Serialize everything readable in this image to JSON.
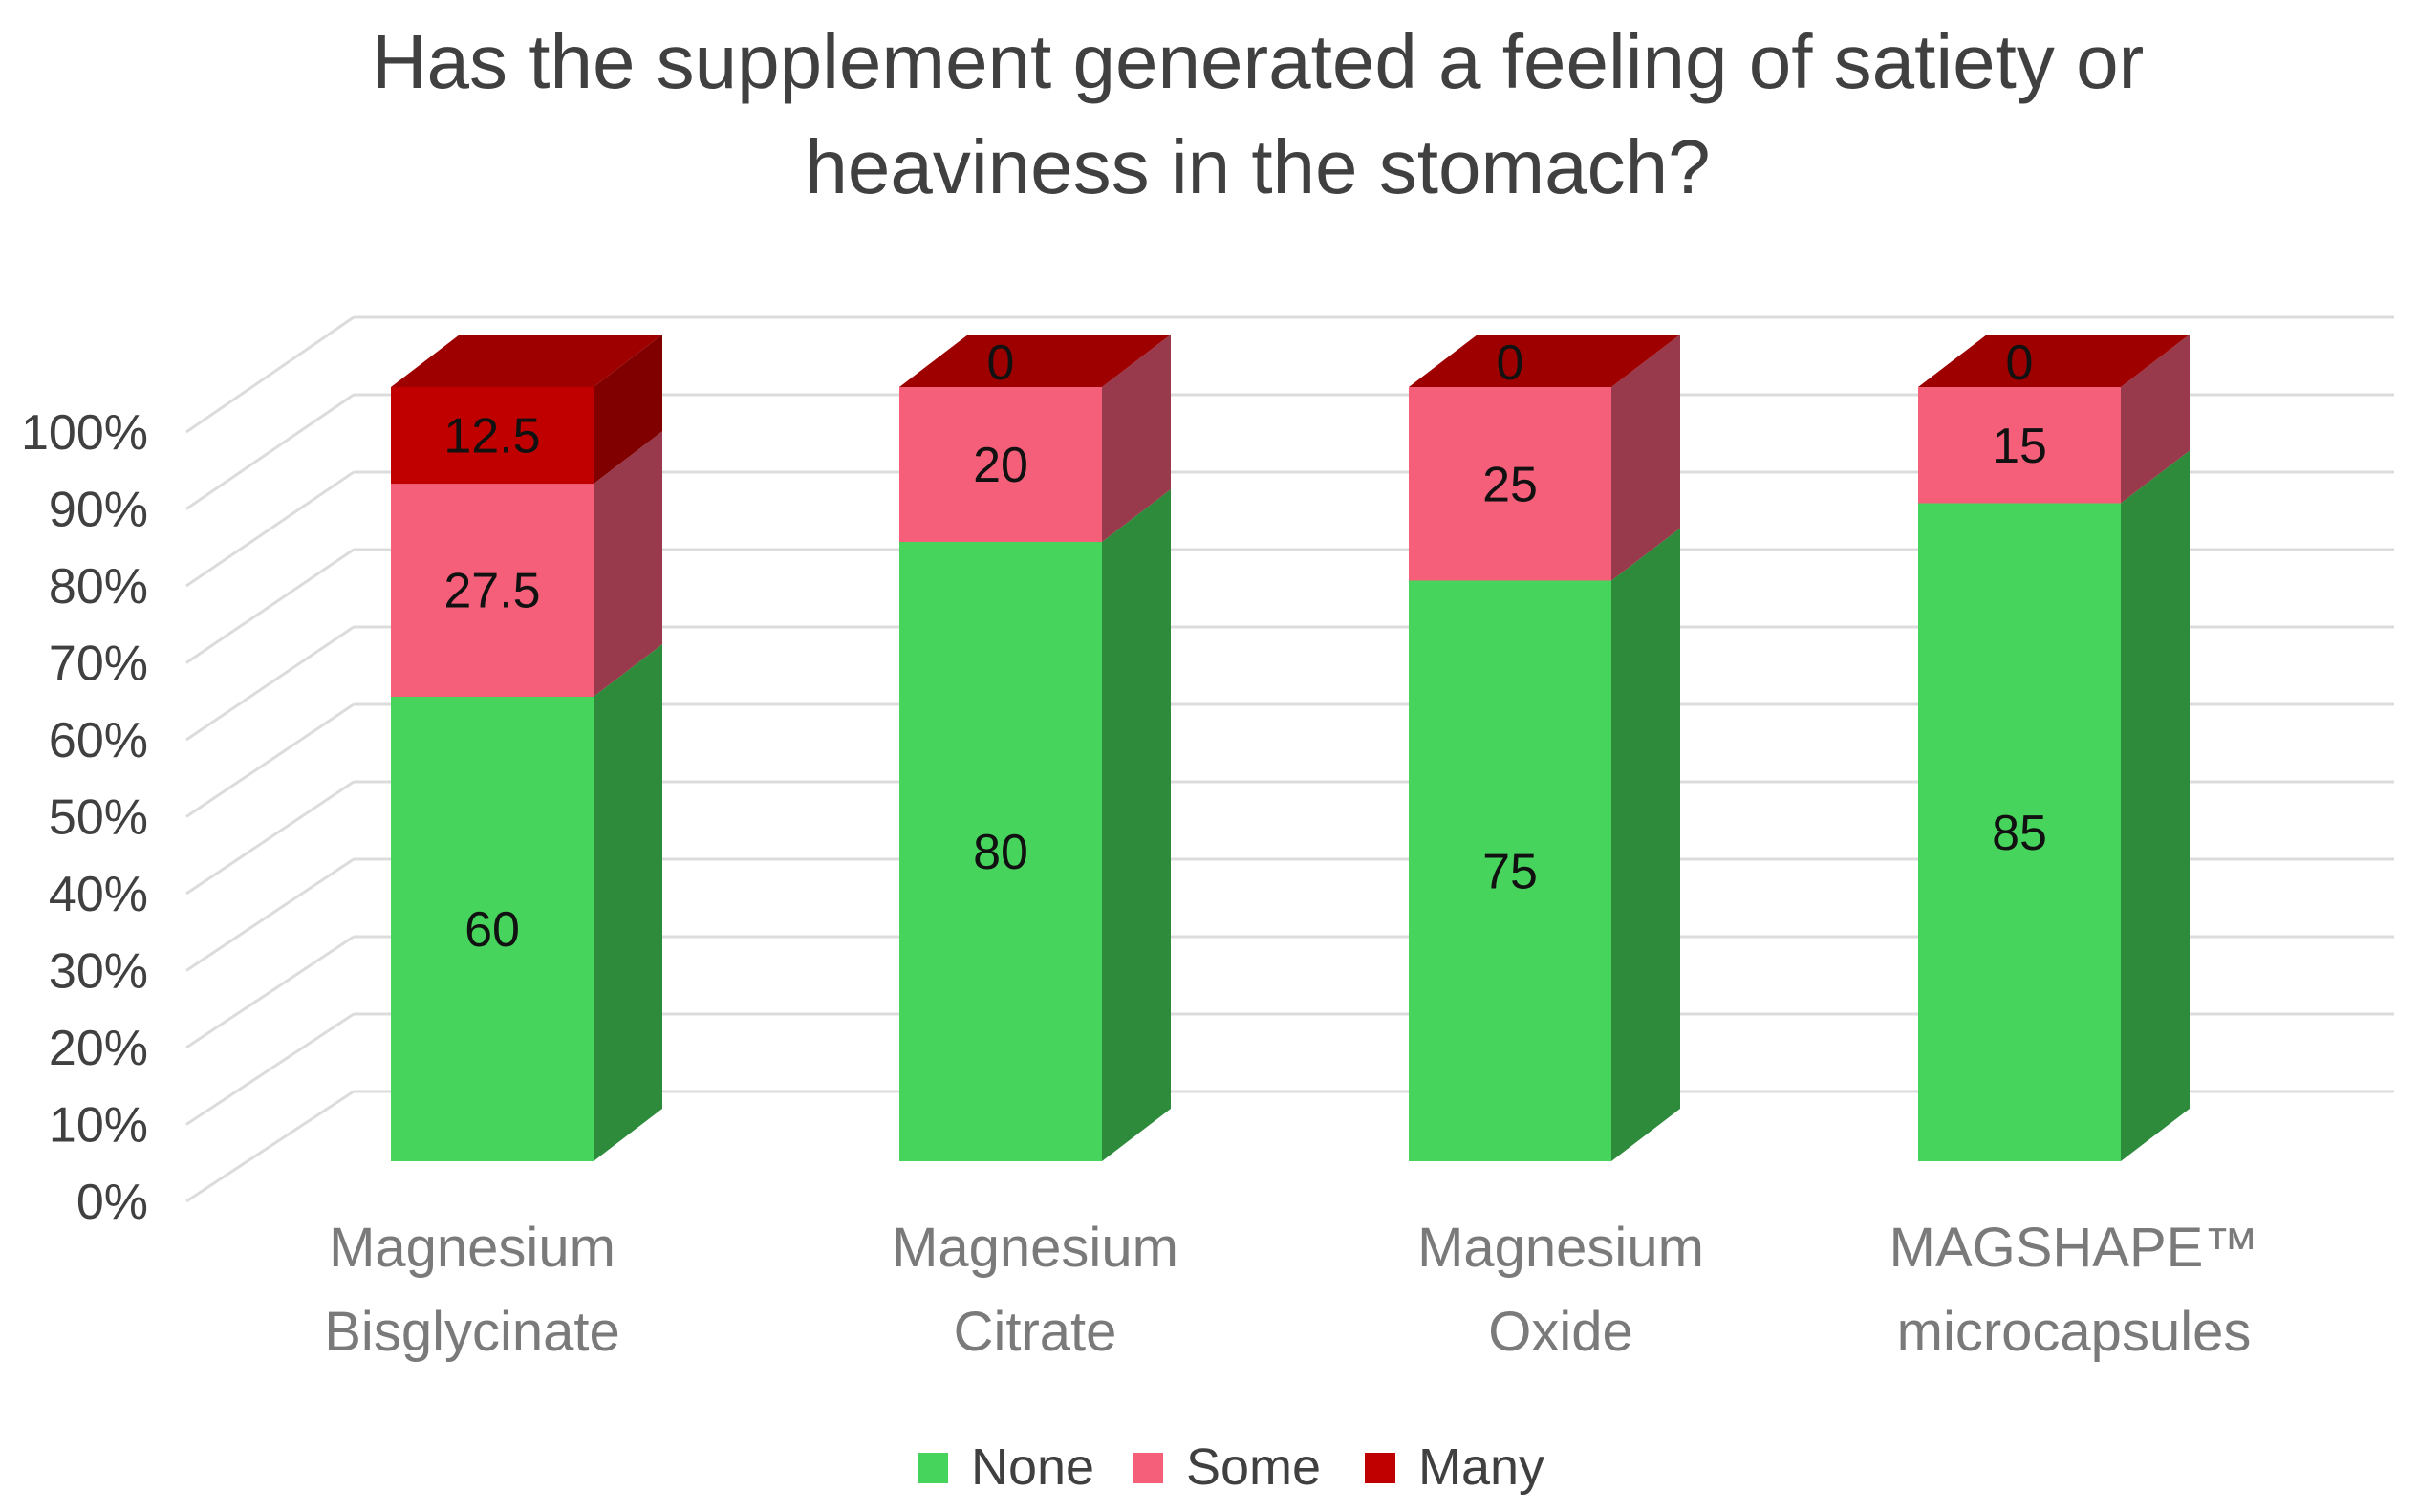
{
  "chart_data": {
    "type": "bar",
    "stacked": true,
    "style": "3d-column",
    "title_lines": [
      "Has the supplement generated a feeling of satiety or",
      "heaviness in the stomach?"
    ],
    "categories": [
      [
        "Magnesium",
        "Bisglycinate"
      ],
      [
        "Magnesium",
        "Citrate"
      ],
      [
        "Magnesium",
        "Oxide"
      ],
      [
        "MAGSHAPE™",
        "microcapsules"
      ]
    ],
    "series": [
      {
        "name": "None",
        "values": [
          60,
          80,
          75,
          85
        ],
        "labels": [
          "60",
          "80",
          "75",
          "85"
        ],
        "color": "#47d45d",
        "side_color": "#2e8b3c",
        "top_color": "#3ab34d"
      },
      {
        "name": "Some",
        "values": [
          27.5,
          20,
          25,
          15
        ],
        "labels": [
          "27.5",
          "20",
          "25",
          "15"
        ],
        "color": "#f55f7a",
        "side_color": "#993a4c",
        "top_color": "#d44f66"
      },
      {
        "name": "Many",
        "values": [
          12.5,
          0,
          0,
          0
        ],
        "labels": [
          "12.5",
          "0",
          "0",
          "0"
        ],
        "color": "#c00000",
        "side_color": "#800000",
        "top_color": "#9e0000"
      }
    ],
    "y_ticks": [
      "0%",
      "10%",
      "20%",
      "30%",
      "40%",
      "50%",
      "60%",
      "70%",
      "80%",
      "90%",
      "100%"
    ],
    "ylim": [
      0,
      100
    ],
    "grid": true,
    "legend_position": "bottom"
  }
}
